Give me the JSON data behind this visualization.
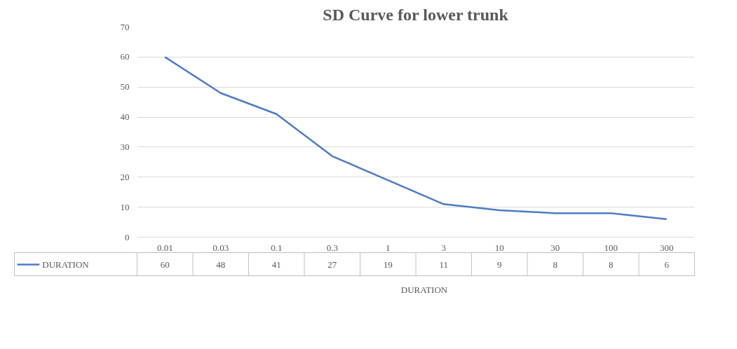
{
  "chart_data": {
    "type": "line",
    "title": "SD Curve for lower trunk",
    "categories": [
      "0.01",
      "0.03",
      "0.1",
      "0.3",
      "1",
      "3",
      "10",
      "30",
      "100",
      "300"
    ],
    "series": [
      {
        "name": "DURATION",
        "color": "#4f7bc3",
        "values": [
          60,
          48,
          41,
          27,
          19,
          11,
          9,
          8,
          8,
          6
        ]
      }
    ],
    "ylim": [
      0,
      70
    ],
    "yticks": [
      0,
      10,
      20,
      30,
      40,
      50,
      60,
      70
    ],
    "grid": "y",
    "legend": "bottom",
    "data_labels": true,
    "marker": "none",
    "line_style": "solid"
  }
}
